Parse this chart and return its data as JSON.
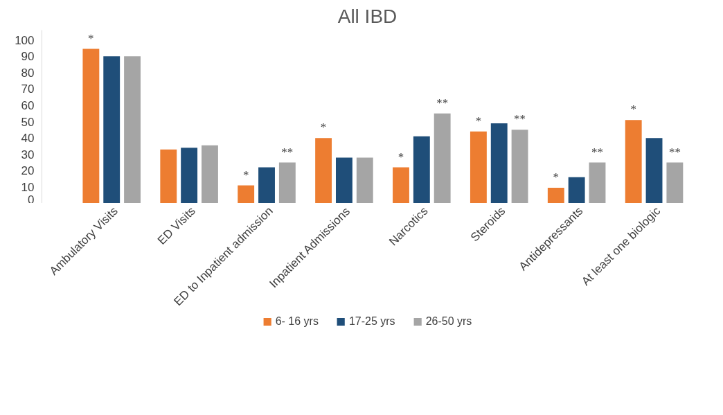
{
  "chart_data": {
    "type": "bar",
    "title": "All IBD",
    "categories": [
      "Ambulatory Visits",
      "ED Visits",
      "ED to Inpatient admission",
      "Inpatient Admissions",
      "Narcotics",
      "Steroids",
      "Antidepressants",
      "At least one biologic"
    ],
    "series": [
      {
        "name": "6- 16 yrs",
        "color": "#ed7d31",
        "values": [
          94.5,
          33,
          11,
          40,
          22,
          44,
          9.5,
          51
        ],
        "value_labels": [
          "*",
          null,
          "*",
          "*",
          "*",
          "*",
          "*",
          "*"
        ]
      },
      {
        "name": "17-25 yrs",
        "color": "#1f4e79",
        "values": [
          90,
          34,
          22,
          28,
          41,
          49,
          16,
          40
        ],
        "value_labels": [
          null,
          null,
          null,
          null,
          null,
          null,
          null,
          null
        ]
      },
      {
        "name": "26-50 yrs",
        "color": "#a5a5a5",
        "values": [
          90,
          35.5,
          25,
          28,
          55,
          45,
          25,
          25
        ],
        "value_labels": [
          null,
          null,
          "**",
          null,
          "**",
          "**",
          "**",
          "**"
        ]
      }
    ],
    "ylim": [
      0,
      106
    ],
    "yticks": [
      0,
      10,
      20,
      30,
      40,
      50,
      60,
      70,
      80,
      90,
      100
    ],
    "grid": false,
    "legend": "bottom"
  }
}
